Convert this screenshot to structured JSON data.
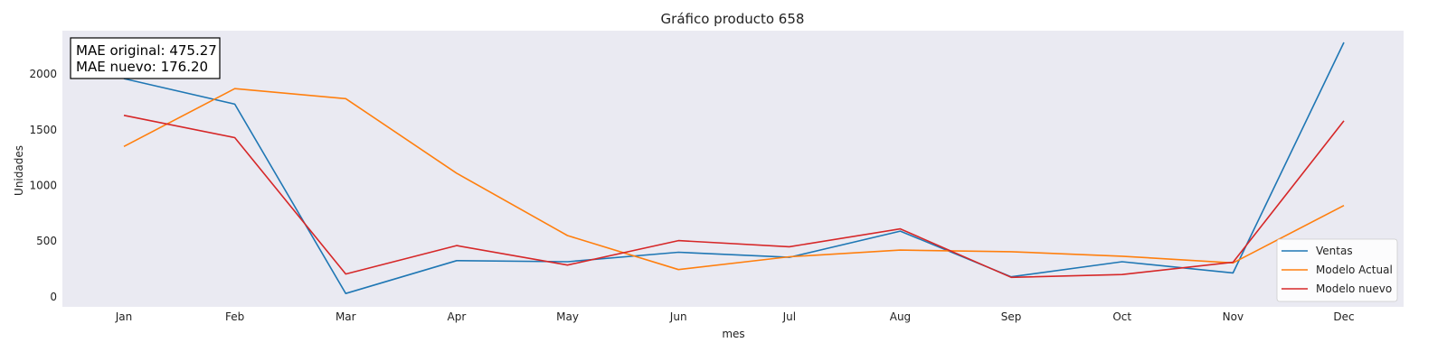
{
  "chart_data": {
    "type": "line",
    "title": "Gráfico producto 658",
    "xlabel": "mes",
    "ylabel": "Unidades",
    "categories": [
      "Jan",
      "Feb",
      "Mar",
      "Apr",
      "May",
      "Jun",
      "Jul",
      "Aug",
      "Sep",
      "Oct",
      "Nov",
      "Dec"
    ],
    "ylim": [
      -90,
      2390
    ],
    "yticks": [
      0,
      500,
      1000,
      1500,
      2000
    ],
    "grid": false,
    "legend_position": "bottom-right",
    "series": [
      {
        "name": "Ventas",
        "color": "#1f77b4",
        "values": [
          1960,
          1730,
          30,
          325,
          315,
          400,
          355,
          590,
          180,
          315,
          215,
          2285
        ]
      },
      {
        "name": "Modelo Actual",
        "color": "#ff7f0e",
        "values": [
          1350,
          1870,
          1780,
          1110,
          550,
          245,
          360,
          420,
          405,
          365,
          305,
          820
        ]
      },
      {
        "name": "Modelo nuevo",
        "color": "#d62728",
        "values": [
          1630,
          1430,
          205,
          460,
          285,
          505,
          450,
          610,
          175,
          200,
          310,
          1580
        ]
      }
    ],
    "annotation": [
      "MAE original: 475.27",
      "MAE nuevo: 176.20"
    ]
  },
  "colors": {
    "plot_background": "#eaeaf2",
    "page_background": "#ffffff"
  }
}
